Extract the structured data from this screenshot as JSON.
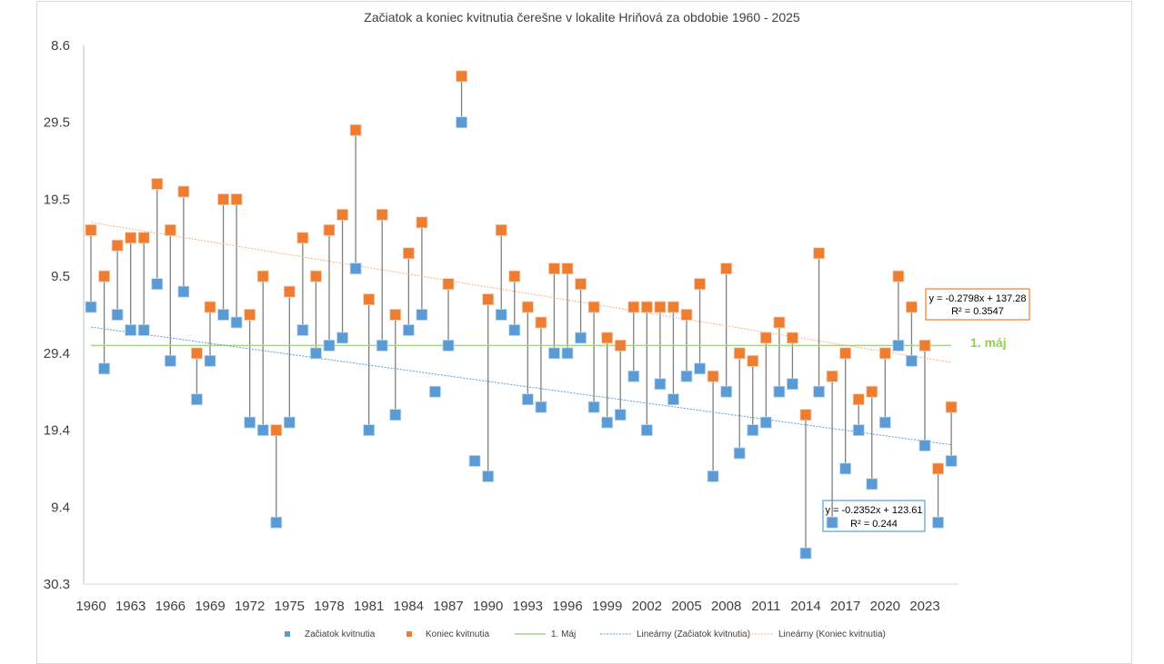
{
  "chart_data": {
    "type": "scatter",
    "title": "Začiatok a koniec kvitnutia čerešne v lokalite Hriňová za obdobie 1960  - 2025",
    "xlabel": "",
    "ylabel": "",
    "y_unit": "days after 30 March (axis labeled as day.month dates)",
    "ylim": [
      0,
      70
    ],
    "xlim": [
      1960,
      2025
    ],
    "grid": false,
    "y_tick_labels": [
      "30.3",
      "9.4",
      "19.4",
      "29.4",
      "9.5",
      "19.5",
      "29.5",
      "8.6"
    ],
    "y_tick_values": [
      0,
      10,
      20,
      30,
      40,
      50,
      60,
      70
    ],
    "x_tick_labels": [
      "1960",
      "1963",
      "1966",
      "1969",
      "1972",
      "1975",
      "1978",
      "1981",
      "1984",
      "1987",
      "1990",
      "1993",
      "1996",
      "1999",
      "2002",
      "2005",
      "2008",
      "2011",
      "2014",
      "2017",
      "2020",
      "2023"
    ],
    "years": [
      1960,
      1961,
      1962,
      1963,
      1964,
      1965,
      1966,
      1967,
      1968,
      1969,
      1970,
      1971,
      1972,
      1973,
      1974,
      1975,
      1976,
      1977,
      1978,
      1979,
      1980,
      1981,
      1982,
      1983,
      1984,
      1985,
      1986,
      1987,
      1988,
      1989,
      1990,
      1991,
      1992,
      1993,
      1994,
      1995,
      1996,
      1997,
      1998,
      1999,
      2000,
      2001,
      2002,
      2003,
      2004,
      2005,
      2006,
      2007,
      2008,
      2009,
      2010,
      2011,
      2012,
      2013,
      2014,
      2015,
      2016,
      2017,
      2018,
      2019,
      2020,
      2021,
      2022,
      2023,
      2024,
      2025
    ],
    "series": [
      {
        "name": "Začiatok kvitnutia",
        "color": "#5b9bd5",
        "marker": "square",
        "values": [
          36,
          28,
          35,
          33,
          33,
          39,
          29,
          38,
          24,
          29,
          35,
          34,
          21,
          20,
          8,
          21,
          33,
          30,
          31,
          32,
          41,
          20,
          31,
          22,
          33,
          35,
          25,
          31,
          60,
          16,
          14,
          35,
          33,
          24,
          23,
          30,
          30,
          32,
          23,
          21,
          22,
          27,
          20,
          26,
          24,
          27,
          28,
          14,
          25,
          17,
          20,
          21,
          25,
          26,
          4,
          25,
          8,
          15,
          20,
          13,
          21,
          31,
          29,
          18,
          8,
          16
        ]
      },
      {
        "name": "Koniec kvitnutia",
        "color": "#ed7d31",
        "marker": "square",
        "values": [
          46,
          40,
          44,
          45,
          45,
          52,
          46,
          51,
          30,
          36,
          50,
          50,
          35,
          40,
          20,
          38,
          45,
          40,
          46,
          48,
          59,
          37,
          48,
          35,
          43,
          47,
          null,
          39,
          66,
          null,
          37,
          46,
          40,
          36,
          34,
          41,
          41,
          39,
          36,
          32,
          31,
          36,
          36,
          36,
          36,
          35,
          39,
          27,
          41,
          30,
          29,
          32,
          34,
          32,
          22,
          43,
          27,
          30,
          24,
          25,
          30,
          40,
          36,
          31,
          15,
          23
        ]
      },
      {
        "name": "1. Máj",
        "color": "#a9d18e",
        "type": "line",
        "value": 31
      },
      {
        "name": "Lineárny (Začiatok kvitnutia)",
        "color": "#5b9bd5",
        "type": "trendline",
        "start": [
          1960,
          33.4
        ],
        "end": [
          2025,
          18.1
        ]
      },
      {
        "name": "Lineárny (Koniec kvitnutia)",
        "color": "#f4b183",
        "type": "trendline",
        "start": [
          1960,
          47.0
        ],
        "end": [
          2025,
          28.8
        ]
      }
    ],
    "legend": {
      "position": "bottom",
      "items": [
        {
          "label": "Začiatok kvitnutia",
          "kind": "marker",
          "color": "#5b9bd5"
        },
        {
          "label": "Koniec kvitnutia",
          "kind": "marker",
          "color": "#ed7d31"
        },
        {
          "label": "1. Máj",
          "kind": "line",
          "color": "#a9d18e"
        },
        {
          "label": "Lineárny (Začiatok kvitnutia)",
          "kind": "dotted",
          "color": "#5b9bd5"
        },
        {
          "label": "Lineárny (Koniec kvitnutia)",
          "kind": "dotted",
          "color": "#f4b183"
        }
      ]
    },
    "annotations": {
      "may_label": "1. máj",
      "eq_end": {
        "line1": "y = -0.2798x + 137.28",
        "line2": "R² = 0.3547",
        "border": "#ed7d31"
      },
      "eq_start": {
        "line1": "y = -0.2352x + 123.61",
        "line2": "R² = 0.244",
        "border": "#5b9bd5"
      }
    }
  }
}
